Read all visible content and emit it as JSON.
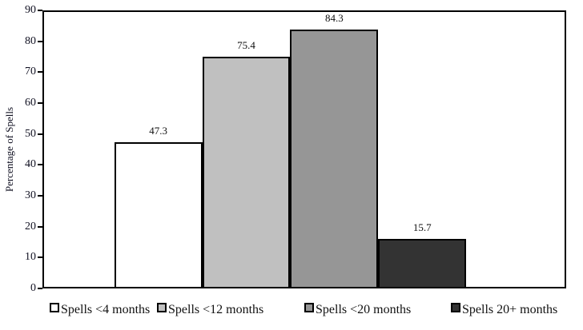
{
  "chart_data": {
    "type": "bar",
    "title": "",
    "xlabel": "",
    "ylabel": "Percentage of Spells",
    "ylim": [
      0,
      90
    ],
    "yticks": [
      0,
      10,
      20,
      30,
      40,
      50,
      60,
      70,
      80,
      90
    ],
    "grid": "off",
    "legend_position": "bottom",
    "categories": [
      "Spells <4 months",
      "Spells <12 months",
      "Spells <20 months",
      "Spells 20+ months"
    ],
    "values": [
      47.3,
      75.4,
      84.3,
      15.7
    ],
    "value_labels": [
      "47.3",
      "75.4",
      "84.3",
      "15.7"
    ],
    "bar_colors": [
      "#FFFFFF",
      "#C0C0C0",
      "#969696",
      "#333333"
    ],
    "bar_border_color": "#000000",
    "axis_color": "#000000",
    "background_color": "#FFFFFF"
  }
}
